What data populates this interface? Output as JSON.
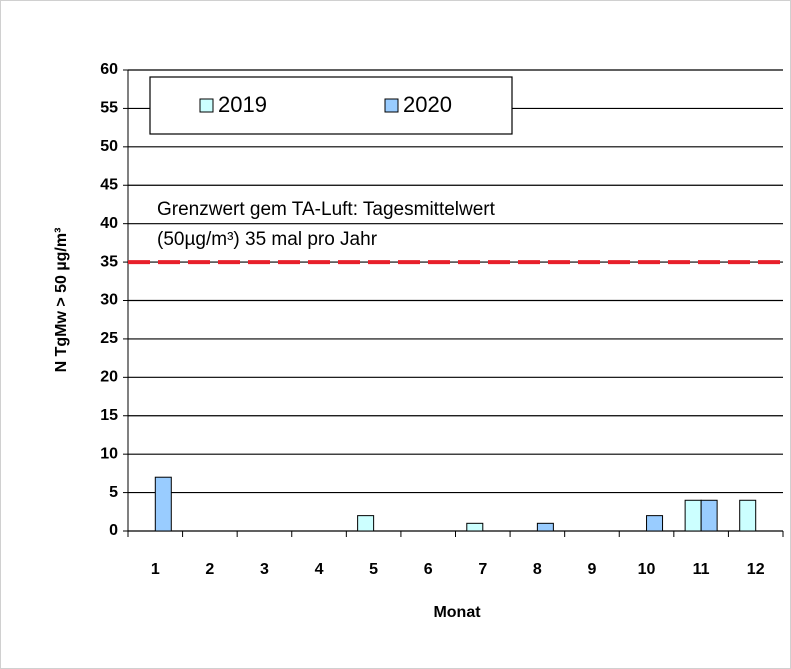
{
  "chart_data": {
    "type": "bar",
    "y_label": "N TgMw > 50 µg/m³",
    "x_label": "Monat",
    "categories": [
      "1",
      "2",
      "3",
      "4",
      "5",
      "6",
      "7",
      "8",
      "9",
      "10",
      "11",
      "12"
    ],
    "series": [
      {
        "name": "2019",
        "color": "#ccffff",
        "values": [
          0,
          0,
          0,
          0,
          2,
          0,
          1,
          0,
          0,
          0,
          4,
          4
        ]
      },
      {
        "name": "2020",
        "color": "#99ccff",
        "values": [
          7,
          0,
          0,
          0,
          0,
          0,
          0,
          1,
          0,
          2,
          4,
          0
        ]
      }
    ],
    "ylim": [
      0,
      60
    ],
    "yticks": [
      0,
      5,
      10,
      15,
      20,
      25,
      30,
      35,
      40,
      45,
      50,
      55,
      60
    ],
    "grid": true,
    "legend": "top-left",
    "reference_line": {
      "value": 35,
      "color": "#e8202a"
    },
    "annotations": [
      "Grenzwert gem TA-Luft: Tagesmittelwert",
      "(50µg/m³)  35 mal pro Jahr"
    ]
  }
}
